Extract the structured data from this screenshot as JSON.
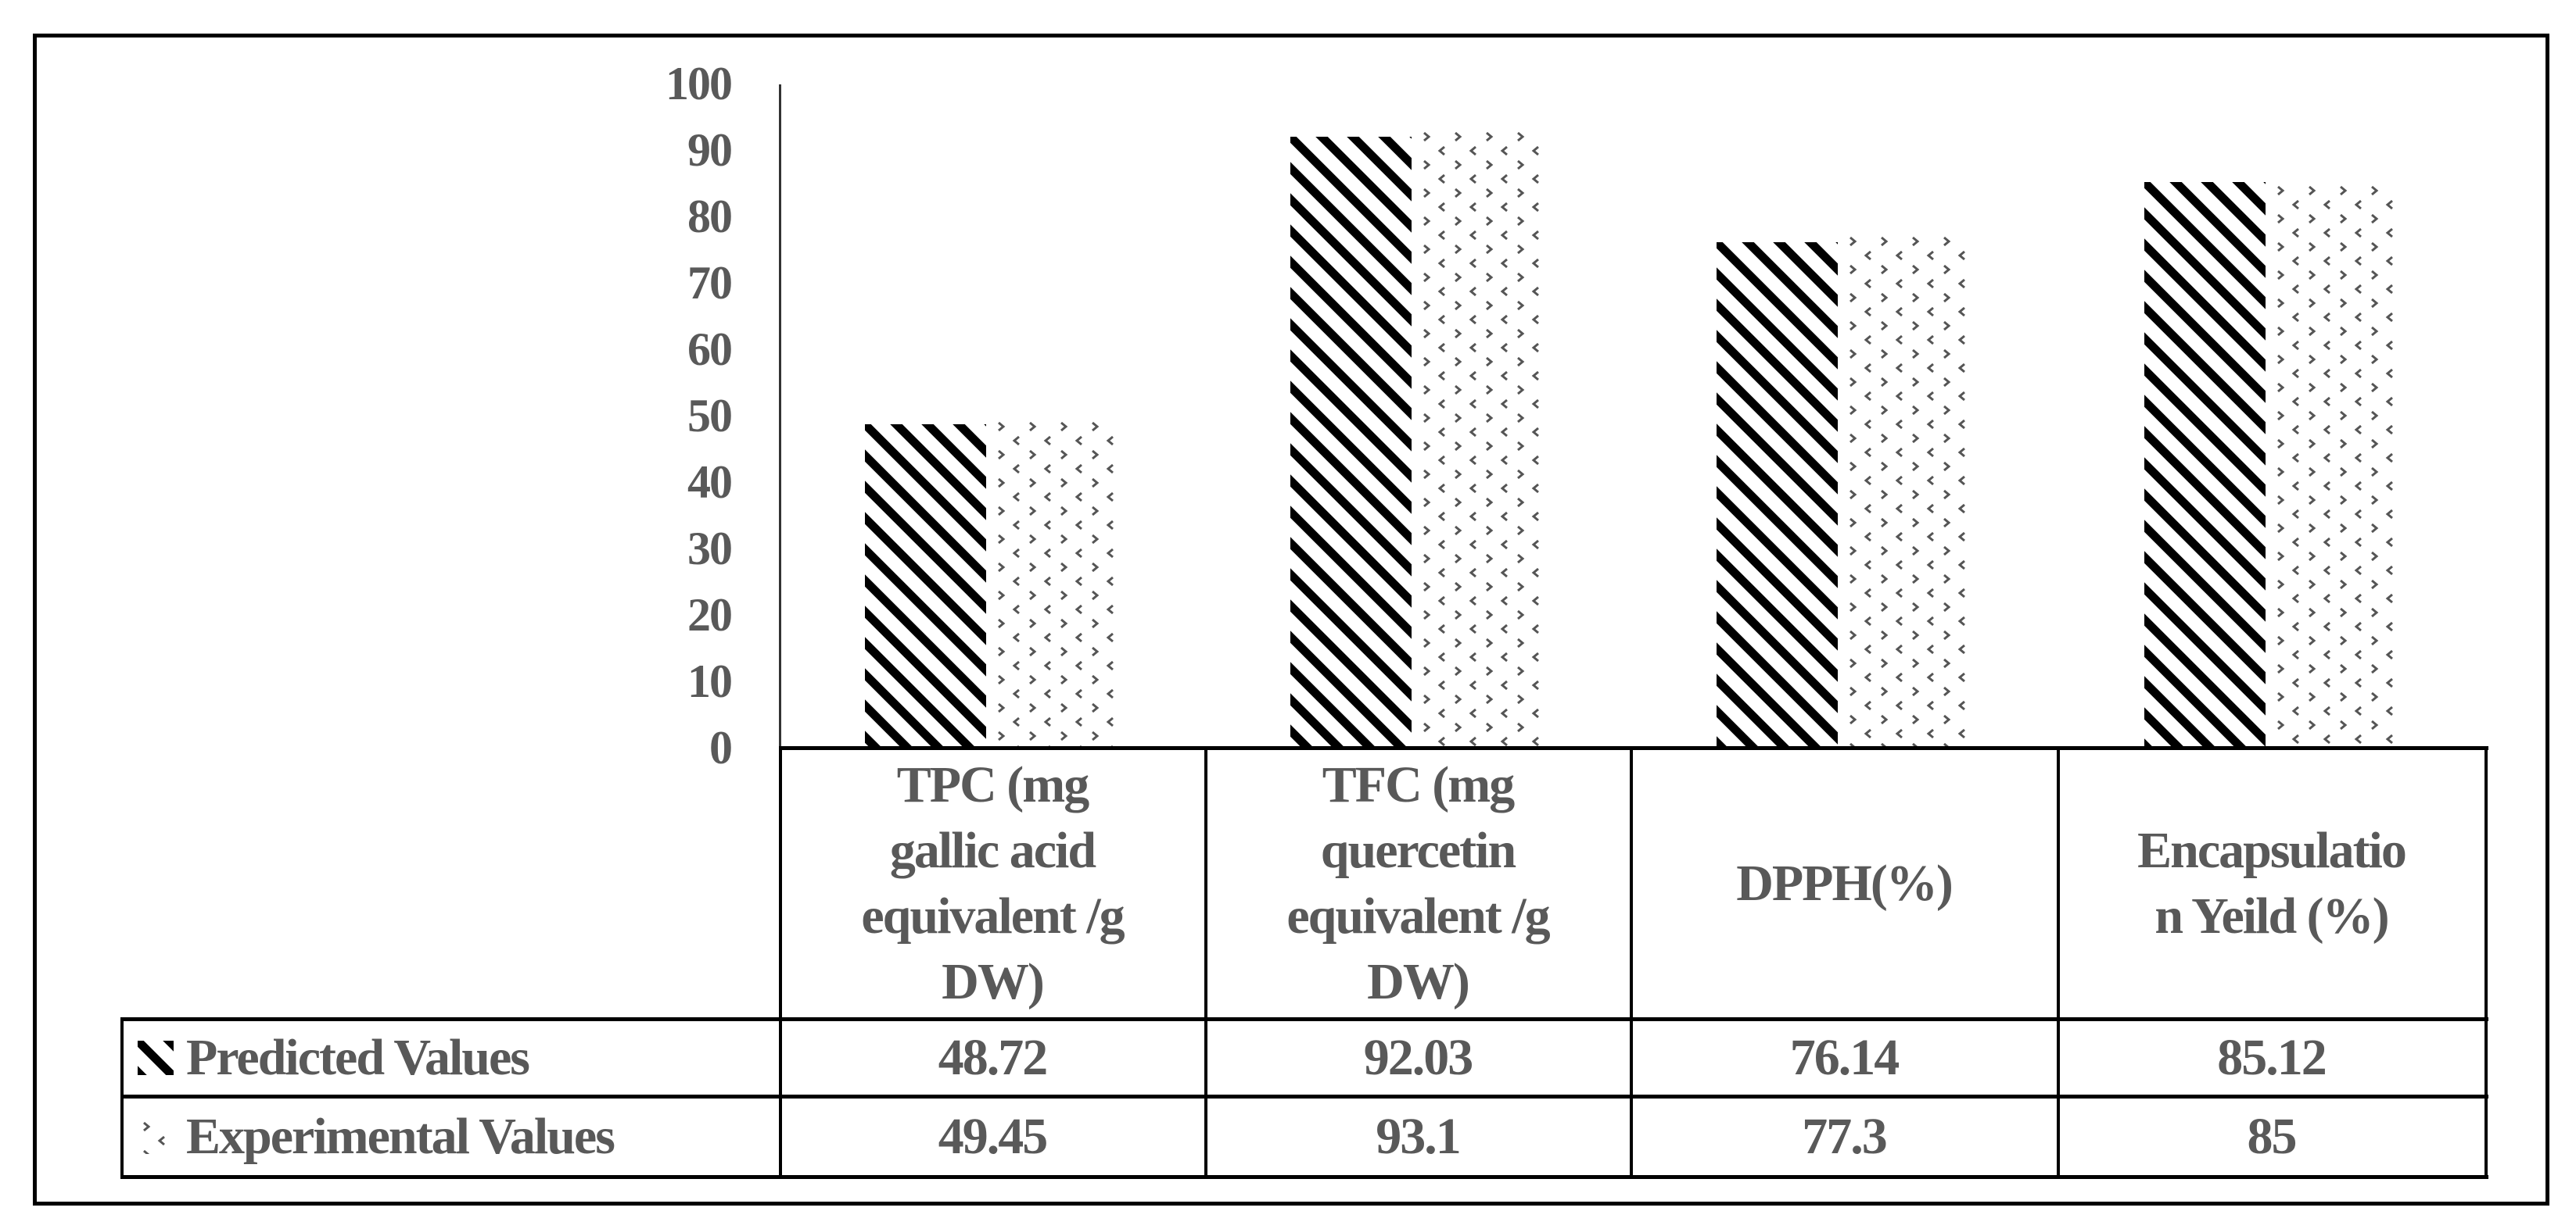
{
  "chart_data": {
    "type": "bar",
    "title": "",
    "xlabel": "",
    "ylabel": "",
    "ylim": [
      0,
      100
    ],
    "yticks": [
      "100",
      "90",
      "80",
      "70",
      "60",
      "50",
      "40",
      "30",
      "20",
      "10",
      "0"
    ],
    "grid": false,
    "legend_position": "data-table",
    "categories": [
      "TPC (mg gallic acid equivalent /g DW)",
      "TFC (mg quercetin equivalent /g DW)",
      "DPPH(%)",
      "Encapsulation Yeild (%)"
    ],
    "category_lines": [
      [
        "TPC (mg",
        "gallic acid",
        "equivalent /g",
        "DW)"
      ],
      [
        "TFC (mg",
        "quercetin",
        "equivalent /g",
        "DW)"
      ],
      [
        "DPPH(%)"
      ],
      [
        "Encapsulatio",
        "n Yeild (%)"
      ]
    ],
    "series": [
      {
        "name": "Predicted Values",
        "pattern": "diagonal-stripes",
        "color": "#000000",
        "values": [
          48.72,
          92.03,
          76.14,
          85.12
        ],
        "labels": [
          "48.72",
          "92.03",
          "76.14",
          "85.12"
        ]
      },
      {
        "name": "Experimental Values",
        "pattern": "chevron-dots",
        "color": "#555555",
        "values": [
          49.45,
          93.1,
          77.3,
          85
        ],
        "labels": [
          "49.45",
          "93.1",
          "77.3",
          "85"
        ]
      }
    ]
  },
  "colors": {
    "text": "#595959",
    "border": "#000000",
    "predicted_stripe": "#000000",
    "experimental_mark": "#555555"
  }
}
